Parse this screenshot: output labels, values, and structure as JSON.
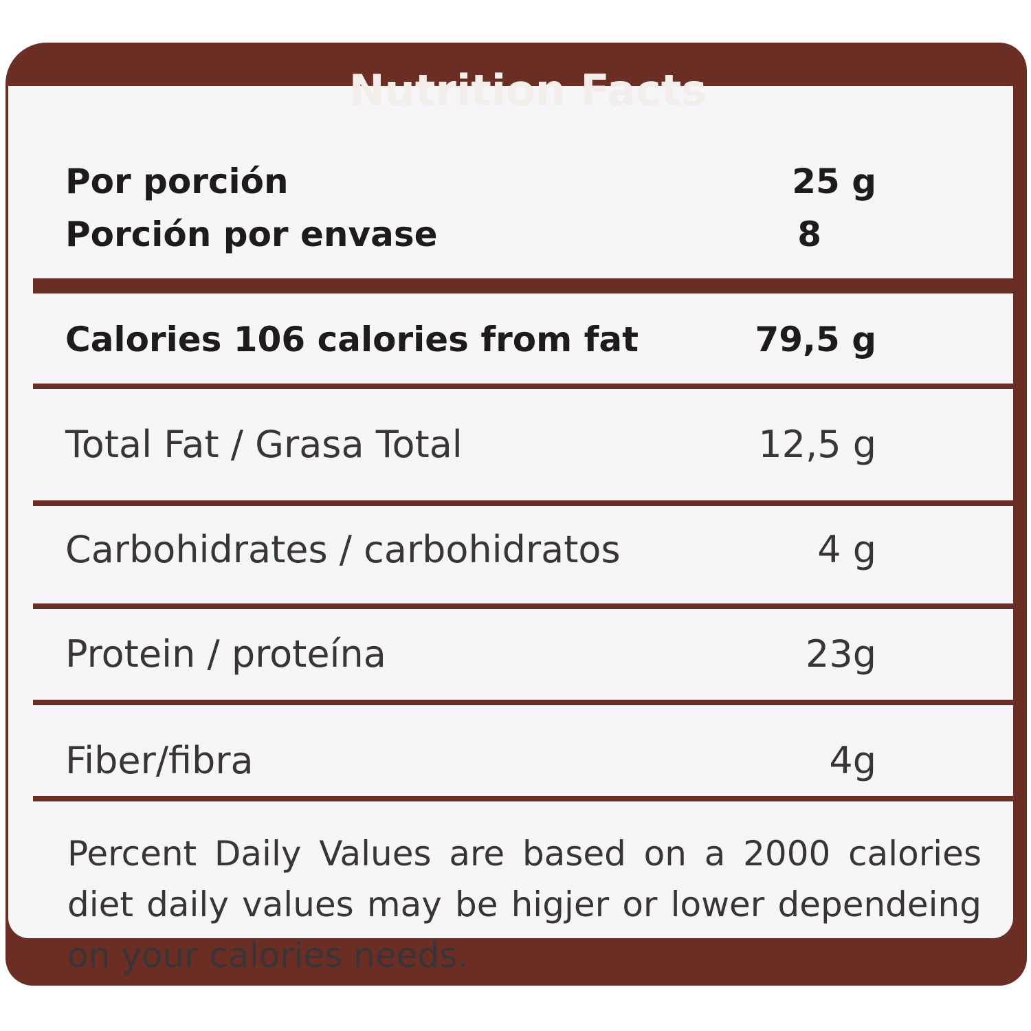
{
  "header": {
    "title": "Nutrition Facts"
  },
  "serving": [
    {
      "label": "Por porción",
      "value": "25 g"
    },
    {
      "label": "Porción por envase",
      "value": "8"
    }
  ],
  "calories": {
    "label": "Calories 106 calories from fat",
    "value": "79,5 g"
  },
  "nutrients": [
    {
      "label": "Total Fat / Grasa Total",
      "value": "12,5 g"
    },
    {
      "label": "Carbohidrates / carbohidratos",
      "value": "4 g"
    },
    {
      "label": "Protein / proteína",
      "value": "23g"
    },
    {
      "label": "Fiber/fibra",
      "value": "4g"
    }
  ],
  "footnote": "Percent Daily Values are based on a 2000 calories diet daily values may be higjer or lower dependeing on your calories needs."
}
